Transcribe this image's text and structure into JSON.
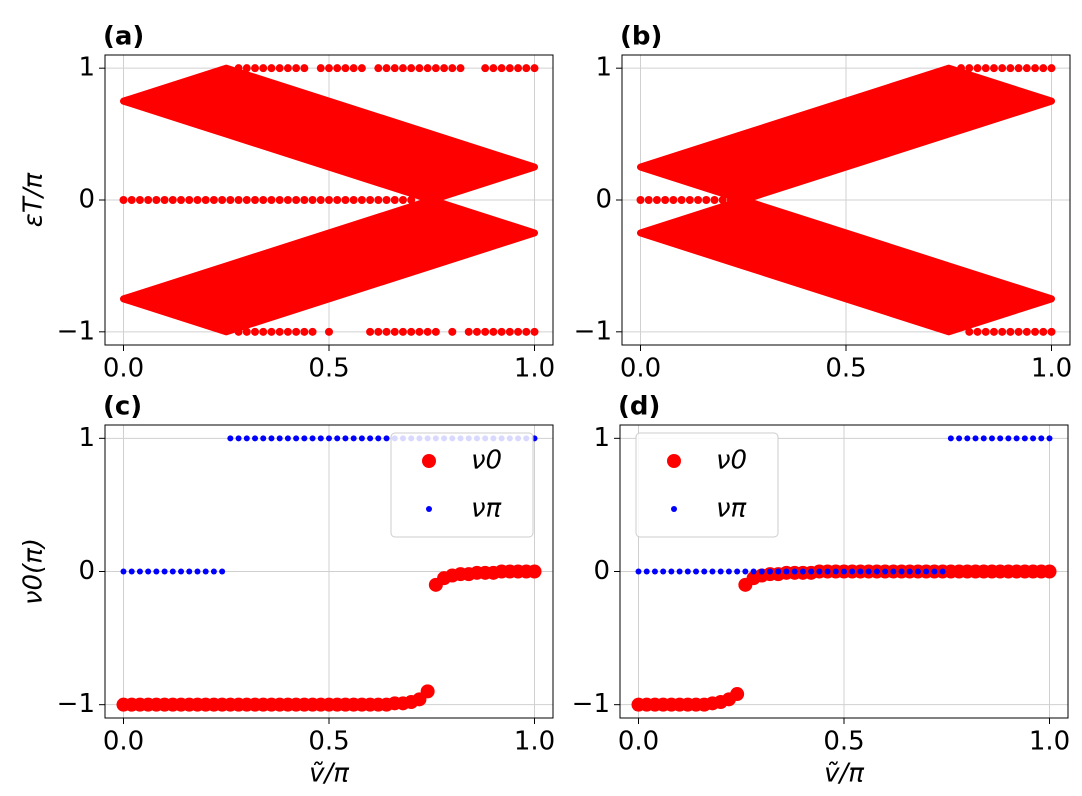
{
  "chart_data": [
    {
      "type": "scatter",
      "label": "(a)",
      "ylabel": "εT/π",
      "xlim": [
        -0.045,
        1.045
      ],
      "ylim": [
        -1.1,
        1.1
      ],
      "xticks": [
        {
          "value": 0,
          "label": "0.0"
        },
        {
          "value": 0.5,
          "label": "0.5"
        },
        {
          "value": 1,
          "label": "1.0"
        }
      ],
      "yticks": [
        {
          "value": -1,
          "label": "−1"
        },
        0,
        1
      ],
      "grid": true,
      "color": "#ff0000",
      "bands": [
        {
          "x": [
            0,
            0.25,
            0.75,
            1
          ],
          "high": [
            0.75,
            1,
            0.5,
            0.25
          ],
          "low": [
            0.75,
            0.5,
            0,
            0.25
          ]
        },
        {
          "x": [
            0,
            0.25,
            0.75,
            1
          ],
          "high": [
            -0.75,
            -0.5,
            0,
            -0.25
          ],
          "low": [
            -0.75,
            -1,
            -0.5,
            -0.25
          ]
        }
      ],
      "series": [
        {
          "color": "#ff0000",
          "x": [
            0,
            0.02,
            0.04,
            0.06,
            0.08,
            0.1,
            0.12,
            0.14,
            0.16,
            0.18,
            0.2,
            0.22,
            0.24,
            0.26,
            0.28,
            0.3,
            0.32,
            0.34,
            0.36,
            0.38,
            0.4,
            0.42,
            0.44,
            0.46,
            0.48,
            0.5,
            0.52,
            0.54,
            0.56,
            0.58,
            0.6,
            0.62,
            0.64,
            0.66,
            0.68,
            0.7
          ],
          "values": [
            0,
            0,
            0,
            0,
            0,
            0,
            0,
            0,
            0,
            0,
            0,
            0,
            0,
            0,
            0,
            0,
            0,
            0,
            0,
            0,
            0,
            0,
            0,
            0,
            0,
            0,
            0,
            0,
            0,
            0,
            0,
            0,
            0,
            0,
            0,
            0
          ]
        },
        {
          "color": "#ff0000",
          "x": [
            0.28,
            0.3,
            0.32,
            0.34,
            0.36,
            0.38,
            0.4,
            0.42,
            0.44,
            0.48,
            0.5,
            0.52,
            0.54,
            0.56,
            0.58,
            0.62,
            0.64,
            0.66,
            0.68,
            0.7,
            0.72,
            0.74,
            0.76,
            0.78,
            0.8,
            0.82,
            0.88,
            0.9,
            0.92,
            0.94,
            0.96,
            0.98,
            1
          ],
          "values": [
            1,
            1,
            1,
            1,
            1,
            1,
            1,
            1,
            1,
            1,
            1,
            1,
            1,
            1,
            1,
            1,
            1,
            1,
            1,
            1,
            1,
            1,
            1,
            1,
            1,
            1,
            1,
            1,
            1,
            1,
            1,
            1,
            1
          ]
        },
        {
          "color": "#ff0000",
          "x": [
            0.28,
            0.3,
            0.32,
            0.34,
            0.36,
            0.38,
            0.4,
            0.42,
            0.44,
            0.46,
            0.5,
            0.6,
            0.62,
            0.64,
            0.66,
            0.68,
            0.7,
            0.72,
            0.74,
            0.76,
            0.8,
            0.84,
            0.86,
            0.88,
            0.9,
            0.92,
            0.94,
            0.96,
            0.98,
            1
          ],
          "values": [
            -1,
            -1,
            -1,
            -1,
            -1,
            -1,
            -1,
            -1,
            -1,
            -1,
            -1,
            -1,
            -1,
            -1,
            -1,
            -1,
            -1,
            -1,
            -1,
            -1,
            -1,
            -1,
            -1,
            -1,
            -1,
            -1,
            -1,
            -1,
            -1,
            -1
          ]
        }
      ]
    },
    {
      "type": "scatter",
      "label": "(b)",
      "xlim": [
        -0.045,
        1.045
      ],
      "ylim": [
        -1.1,
        1.1
      ],
      "xticks": [
        {
          "value": 0,
          "label": "0.0"
        },
        {
          "value": 0.5,
          "label": "0.5"
        },
        {
          "value": 1,
          "label": "1.0"
        }
      ],
      "yticks": [
        {
          "value": -1,
          "label": "−1"
        },
        0,
        1
      ],
      "grid": true,
      "color": "#ff0000",
      "bands": [
        {
          "x": [
            0,
            0.25,
            0.75,
            1
          ],
          "high": [
            0.25,
            0.5,
            1,
            0.75
          ],
          "low": [
            0.25,
            0,
            0.5,
            0.75
          ]
        },
        {
          "x": [
            0,
            0.25,
            0.75,
            1
          ],
          "high": [
            -0.25,
            0,
            -0.5,
            -0.75
          ],
          "low": [
            -0.25,
            -0.5,
            -1,
            -0.75
          ]
        }
      ],
      "series": [
        {
          "color": "#ff0000",
          "x": [
            0,
            0.02,
            0.04,
            0.06,
            0.08,
            0.1,
            0.12,
            0.14,
            0.16,
            0.18,
            0.2,
            0.22,
            0.24
          ],
          "values": [
            0,
            0,
            0,
            0,
            0,
            0,
            0,
            0,
            0,
            0,
            0,
            0,
            0
          ]
        },
        {
          "color": "#ff0000",
          "x": [
            0.78,
            0.8,
            0.82,
            0.84,
            0.86,
            0.88,
            0.9,
            0.92,
            0.94,
            0.96,
            0.98,
            1
          ],
          "values": [
            1,
            1,
            1,
            1,
            1,
            1,
            1,
            1,
            1,
            1,
            1,
            1
          ]
        },
        {
          "color": "#ff0000",
          "x": [
            0.8,
            0.82,
            0.84,
            0.86,
            0.88,
            0.9,
            0.92,
            0.94,
            0.96,
            0.98,
            1
          ],
          "values": [
            -1,
            -1,
            -1,
            -1,
            -1,
            -1,
            -1,
            -1,
            -1,
            -1,
            -1
          ]
        }
      ]
    },
    {
      "type": "scatter",
      "label": "(c)",
      "ylabel": "ν0(π)",
      "xlabel": "ṽ/π",
      "legend": "upper right",
      "xlim": [
        -0.045,
        1.045
      ],
      "ylim": [
        -1.1,
        1.1
      ],
      "xticks": [
        {
          "value": 0,
          "label": "0.0"
        },
        {
          "value": 0.5,
          "label": "0.5"
        },
        {
          "value": 1,
          "label": "1.0"
        }
      ],
      "yticks": [
        {
          "value": -1,
          "label": "−1"
        },
        0,
        1
      ],
      "grid": true,
      "series": [
        {
          "name": "ν0",
          "color": "#ff0000",
          "x": [
            0,
            0.02,
            0.04,
            0.06,
            0.08,
            0.1,
            0.12,
            0.14,
            0.16,
            0.18,
            0.2,
            0.22,
            0.24,
            0.26,
            0.28,
            0.3,
            0.32,
            0.34,
            0.36,
            0.38,
            0.4,
            0.42,
            0.44,
            0.46,
            0.48,
            0.5,
            0.52,
            0.54,
            0.56,
            0.58,
            0.6,
            0.62,
            0.64,
            0.66,
            0.68,
            0.7,
            0.72,
            0.74,
            0.76,
            0.78,
            0.8,
            0.82,
            0.84,
            0.86,
            0.88,
            0.9,
            0.92,
            0.94,
            0.96,
            0.98,
            1
          ],
          "values": [
            -1,
            -1,
            -1,
            -1,
            -1,
            -1,
            -1,
            -1,
            -1,
            -1,
            -1,
            -1,
            -1,
            -1,
            -1,
            -1,
            -1,
            -1,
            -1,
            -1,
            -1,
            -1,
            -1,
            -1,
            -1,
            -1,
            -1,
            -1,
            -1,
            -1,
            -1,
            -1,
            -1,
            -0.99,
            -0.99,
            -0.98,
            -0.96,
            -0.9,
            -0.1,
            -0.05,
            -0.03,
            -0.02,
            -0.02,
            -0.01,
            -0.01,
            -0.01,
            0,
            0,
            0,
            0,
            0
          ]
        },
        {
          "name": "νπ",
          "color": "#0000ff",
          "x": [
            0,
            0.02,
            0.04,
            0.06,
            0.08,
            0.1,
            0.12,
            0.14,
            0.16,
            0.18,
            0.2,
            0.22,
            0.24,
            0.26,
            0.28,
            0.3,
            0.32,
            0.34,
            0.36,
            0.38,
            0.4,
            0.42,
            0.44,
            0.46,
            0.48,
            0.5,
            0.52,
            0.54,
            0.56,
            0.58,
            0.6,
            0.62,
            0.64,
            0.66,
            0.68,
            0.7,
            0.72,
            0.74,
            0.76,
            0.78,
            0.8,
            0.82,
            0.84,
            0.86,
            0.88,
            0.9,
            0.92,
            0.94,
            0.96,
            0.98,
            1
          ],
          "values": [
            0,
            0,
            0,
            0,
            0,
            0,
            0,
            0,
            0,
            0,
            0,
            0,
            0,
            1,
            1,
            1,
            1,
            1,
            1,
            1,
            1,
            1,
            1,
            1,
            1,
            1,
            1,
            1,
            1,
            1,
            1,
            1,
            1,
            1,
            1,
            1,
            1,
            1,
            1,
            1,
            1,
            1,
            1,
            1,
            1,
            1,
            1,
            1,
            1,
            1,
            1
          ]
        }
      ]
    },
    {
      "type": "scatter",
      "label": "(d)",
      "xlabel": "ṽ/π",
      "legend": "upper left",
      "xlim": [
        -0.045,
        1.045
      ],
      "ylim": [
        -1.1,
        1.1
      ],
      "xticks": [
        {
          "value": 0,
          "label": "0.0"
        },
        {
          "value": 0.5,
          "label": "0.5"
        },
        {
          "value": 1,
          "label": "1.0"
        }
      ],
      "yticks": [
        {
          "value": -1,
          "label": "−1"
        },
        0,
        1
      ],
      "grid": true,
      "series": [
        {
          "name": "ν0",
          "color": "#ff0000",
          "x": [
            0,
            0.02,
            0.04,
            0.06,
            0.08,
            0.1,
            0.12,
            0.14,
            0.16,
            0.18,
            0.2,
            0.22,
            0.24,
            0.26,
            0.28,
            0.3,
            0.32,
            0.34,
            0.36,
            0.38,
            0.4,
            0.42,
            0.44,
            0.46,
            0.48,
            0.5,
            0.52,
            0.54,
            0.56,
            0.58,
            0.6,
            0.62,
            0.64,
            0.66,
            0.68,
            0.7,
            0.72,
            0.74,
            0.76,
            0.78,
            0.8,
            0.82,
            0.84,
            0.86,
            0.88,
            0.9,
            0.92,
            0.94,
            0.96,
            0.98,
            1
          ],
          "values": [
            -1,
            -1,
            -1,
            -1,
            -1,
            -1,
            -1,
            -1,
            -1,
            -0.99,
            -0.98,
            -0.96,
            -0.92,
            -0.1,
            -0.05,
            -0.03,
            -0.02,
            -0.02,
            -0.01,
            -0.01,
            -0.01,
            -0.01,
            0,
            0,
            0,
            0,
            0,
            0,
            0,
            0,
            0,
            0,
            0,
            0,
            0,
            0,
            0,
            0,
            0,
            0,
            0,
            0,
            0,
            0,
            0,
            0,
            0,
            0,
            0,
            0,
            0
          ]
        },
        {
          "name": "νπ",
          "color": "#0000ff",
          "x": [
            0,
            0.02,
            0.04,
            0.06,
            0.08,
            0.1,
            0.12,
            0.14,
            0.16,
            0.18,
            0.2,
            0.22,
            0.24,
            0.26,
            0.28,
            0.3,
            0.32,
            0.34,
            0.36,
            0.38,
            0.4,
            0.42,
            0.44,
            0.46,
            0.48,
            0.5,
            0.52,
            0.54,
            0.56,
            0.58,
            0.6,
            0.62,
            0.64,
            0.66,
            0.68,
            0.7,
            0.72,
            0.74,
            0.76,
            0.78,
            0.8,
            0.82,
            0.84,
            0.86,
            0.88,
            0.9,
            0.92,
            0.94,
            0.96,
            0.98,
            1
          ],
          "values": [
            0,
            0,
            0,
            0,
            0,
            0,
            0,
            0,
            0,
            0,
            0,
            0,
            0,
            0,
            0,
            0,
            0,
            0,
            0,
            0,
            0,
            0,
            0,
            0,
            0,
            0,
            0,
            0,
            0,
            0,
            0,
            0,
            0,
            0,
            0,
            0,
            0,
            0,
            1,
            1,
            1,
            1,
            1,
            1,
            1,
            1,
            1,
            1,
            1,
            1,
            1
          ]
        }
      ]
    }
  ]
}
